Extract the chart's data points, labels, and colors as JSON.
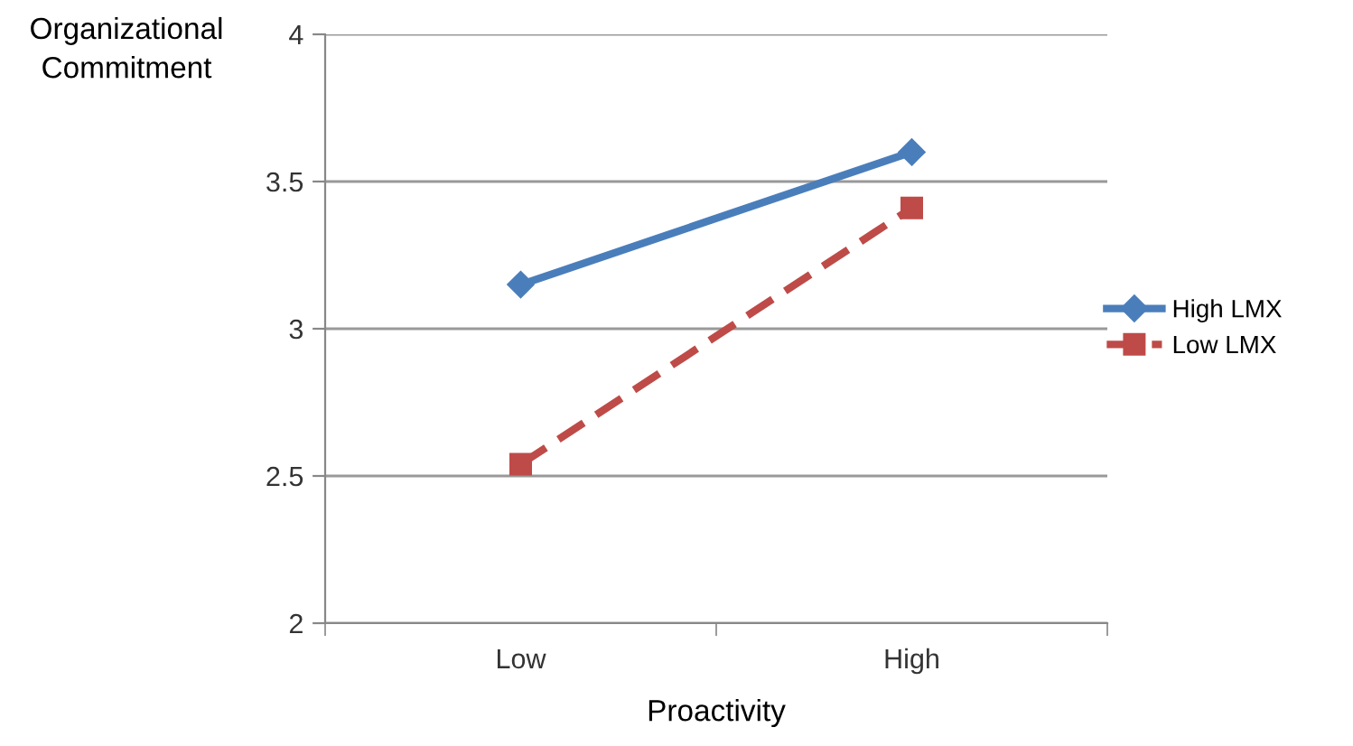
{
  "chart_data": {
    "type": "line",
    "xlabel": "Proactivity",
    "ylabel": "Organizational\nCommitment",
    "categories": [
      "Low",
      "High"
    ],
    "series": [
      {
        "name": "High LMX",
        "color": "#4a7ebb",
        "values": [
          3.15,
          3.6
        ],
        "marker": "diamond",
        "line_style": "solid"
      },
      {
        "name": "Low LMX",
        "color": "#be4b48",
        "values": [
          2.54,
          3.41
        ],
        "marker": "square",
        "line_style": "dashed"
      }
    ],
    "ylim": [
      2,
      4
    ],
    "yticks": [
      2,
      2.5,
      3,
      3.5,
      4
    ],
    "grid": "y",
    "legend": "right"
  }
}
